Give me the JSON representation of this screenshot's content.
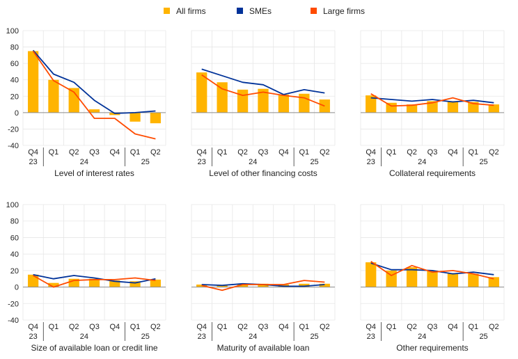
{
  "legend": {
    "position": "top-center",
    "items": [
      {
        "label": "All firms",
        "color": "#FFB400",
        "shape": "square"
      },
      {
        "label": "SMEs",
        "color": "#003299",
        "shape": "square"
      },
      {
        "label": "Large firms",
        "color": "#FF4B00",
        "shape": "square"
      }
    ]
  },
  "chart_data": [
    {
      "type": "bar",
      "title": "Level of interest rates",
      "quarters": [
        "Q4",
        "Q1",
        "Q2",
        "Q3",
        "Q4",
        "Q1",
        "Q2"
      ],
      "years": [
        {
          "label": "23",
          "span": [
            0,
            0
          ]
        },
        {
          "label": "24",
          "span": [
            1,
            4
          ]
        },
        {
          "label": "25",
          "span": [
            5,
            6
          ]
        }
      ],
      "ylim": [
        -40,
        100
      ],
      "yticks": [
        -40,
        -20,
        0,
        20,
        40,
        60,
        80,
        100
      ],
      "grid": true,
      "series": [
        {
          "name": "All firms",
          "kind": "bar",
          "values": [
            75,
            40,
            30,
            4,
            -3,
            -11,
            -13
          ]
        },
        {
          "name": "SMEs",
          "kind": "line",
          "values": [
            76,
            47,
            37,
            15,
            -1,
            0,
            2
          ]
        },
        {
          "name": "Large firms",
          "kind": "line",
          "values": [
            75,
            39,
            25,
            -7,
            -7,
            -26,
            -32
          ]
        }
      ]
    },
    {
      "type": "bar",
      "title": "Level of other financing costs",
      "quarters": [
        "Q4",
        "Q1",
        "Q2",
        "Q3",
        "Q4",
        "Q1",
        "Q2"
      ],
      "years": [
        {
          "label": "23",
          "span": [
            0,
            0
          ]
        },
        {
          "label": "24",
          "span": [
            1,
            4
          ]
        },
        {
          "label": "25",
          "span": [
            5,
            6
          ]
        }
      ],
      "ylim": [
        -40,
        100
      ],
      "yticks": [
        -40,
        -20,
        0,
        20,
        40,
        60,
        80,
        100
      ],
      "grid": true,
      "series": [
        {
          "name": "All firms",
          "kind": "bar",
          "values": [
            49,
            37,
            28,
            29,
            22,
            23,
            16
          ]
        },
        {
          "name": "SMEs",
          "kind": "line",
          "values": [
            53,
            45,
            37,
            34,
            22,
            28,
            24
          ]
        },
        {
          "name": "Large firms",
          "kind": "line",
          "values": [
            46,
            29,
            21,
            25,
            21,
            18,
            8
          ]
        }
      ]
    },
    {
      "type": "bar",
      "title": "Collateral requirements",
      "quarters": [
        "Q4",
        "Q1",
        "Q2",
        "Q3",
        "Q4",
        "Q1",
        "Q2"
      ],
      "years": [
        {
          "label": "23",
          "span": [
            0,
            0
          ]
        },
        {
          "label": "24",
          "span": [
            1,
            4
          ]
        },
        {
          "label": "25",
          "span": [
            5,
            6
          ]
        }
      ],
      "ylim": [
        -40,
        100
      ],
      "yticks": [
        -40,
        -20,
        0,
        20,
        40,
        60,
        80,
        100
      ],
      "grid": true,
      "series": [
        {
          "name": "All firms",
          "kind": "bar",
          "values": [
            21,
            12,
            10,
            14,
            14,
            13,
            10
          ]
        },
        {
          "name": "SMEs",
          "kind": "line",
          "values": [
            18,
            16,
            14,
            16,
            13,
            15,
            12
          ]
        },
        {
          "name": "Large firms",
          "kind": "line",
          "values": [
            23,
            8,
            9,
            12,
            18,
            11,
            9
          ]
        }
      ]
    },
    {
      "type": "bar",
      "title": "Size of available loan or credit line",
      "quarters": [
        "Q4",
        "Q1",
        "Q2",
        "Q3",
        "Q4",
        "Q1",
        "Q2"
      ],
      "years": [
        {
          "label": "23",
          "span": [
            0,
            0
          ]
        },
        {
          "label": "24",
          "span": [
            1,
            4
          ]
        },
        {
          "label": "25",
          "span": [
            5,
            6
          ]
        }
      ],
      "ylim": [
        -40,
        100
      ],
      "yticks": [
        -40,
        -20,
        0,
        20,
        40,
        60,
        80,
        100
      ],
      "grid": true,
      "series": [
        {
          "name": "All firms",
          "kind": "bar",
          "values": [
            15,
            5,
            10,
            10,
            8,
            7,
            9
          ]
        },
        {
          "name": "SMEs",
          "kind": "line",
          "values": [
            15,
            10,
            14,
            11,
            7,
            5,
            10
          ]
        },
        {
          "name": "Large firms",
          "kind": "line",
          "values": [
            14,
            0,
            8,
            9,
            9,
            11,
            8
          ]
        }
      ]
    },
    {
      "type": "bar",
      "title": "Maturity of available loan",
      "quarters": [
        "Q4",
        "Q1",
        "Q2",
        "Q3",
        "Q4",
        "Q1",
        "Q2"
      ],
      "years": [
        {
          "label": "23",
          "span": [
            0,
            0
          ]
        },
        {
          "label": "24",
          "span": [
            1,
            4
          ]
        },
        {
          "label": "25",
          "span": [
            5,
            6
          ]
        }
      ],
      "ylim": [
        -40,
        100
      ],
      "yticks": [
        -40,
        -20,
        0,
        20,
        40,
        60,
        80,
        100
      ],
      "grid": true,
      "series": [
        {
          "name": "All firms",
          "kind": "bar",
          "values": [
            3,
            2,
            4,
            4,
            3,
            4,
            4
          ]
        },
        {
          "name": "SMEs",
          "kind": "line",
          "values": [
            3,
            2,
            4,
            3,
            1,
            1,
            3
          ]
        },
        {
          "name": "Large firms",
          "kind": "line",
          "values": [
            2,
            -4,
            3,
            3,
            3,
            8,
            6
          ]
        }
      ]
    },
    {
      "type": "bar",
      "title": "Other requirements",
      "quarters": [
        "Q4",
        "Q1",
        "Q2",
        "Q3",
        "Q4",
        "Q1",
        "Q2"
      ],
      "years": [
        {
          "label": "23",
          "span": [
            0,
            0
          ]
        },
        {
          "label": "24",
          "span": [
            1,
            4
          ]
        },
        {
          "label": "25",
          "span": [
            5,
            6
          ]
        }
      ],
      "ylim": [
        -40,
        100
      ],
      "yticks": [
        -40,
        -20,
        0,
        20,
        40,
        60,
        80,
        100
      ],
      "grid": true,
      "series": [
        {
          "name": "All firms",
          "kind": "bar",
          "values": [
            30,
            20,
            24,
            20,
            17,
            16,
            12
          ]
        },
        {
          "name": "SMEs",
          "kind": "line",
          "values": [
            29,
            21,
            21,
            20,
            16,
            18,
            15
          ]
        },
        {
          "name": "Large firms",
          "kind": "line",
          "values": [
            31,
            14,
            26,
            18,
            20,
            16,
            10
          ]
        }
      ]
    }
  ]
}
